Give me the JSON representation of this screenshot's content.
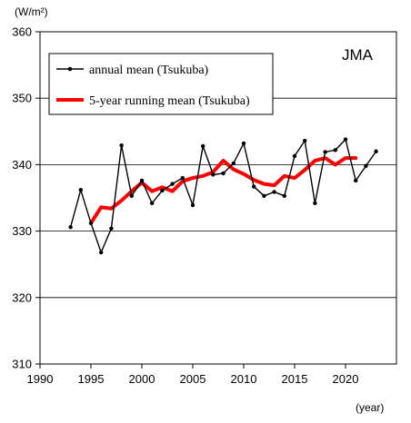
{
  "chart_data": {
    "type": "line",
    "ylabel": "(W/m²)",
    "xlabel": "(year)",
    "annotation": "JMA",
    "xlim": [
      1990,
      2025
    ],
    "ylim": [
      310,
      360
    ],
    "x_ticks": [
      1990,
      1995,
      2000,
      2005,
      2010,
      2015,
      2020
    ],
    "y_ticks": [
      310,
      320,
      330,
      340,
      350,
      360
    ],
    "grid": true,
    "legend_position": "top-left",
    "series": [
      {
        "name": "annual mean (Tsukuba)",
        "color": "#000000",
        "marker": "dot",
        "x": [
          1993,
          1994,
          1995,
          1996,
          1997,
          1998,
          1999,
          2000,
          2001,
          2002,
          2003,
          2004,
          2005,
          2006,
          2007,
          2008,
          2009,
          2010,
          2011,
          2012,
          2013,
          2014,
          2015,
          2016,
          2017,
          2018,
          2019,
          2020,
          2021,
          2022,
          2023
        ],
        "y": [
          330.6,
          336.2,
          331.2,
          326.8,
          330.4,
          342.9,
          335.3,
          337.6,
          334.2,
          336.1,
          337.1,
          338.0,
          333.9,
          342.8,
          338.5,
          338.7,
          340.2,
          343.2,
          336.7,
          335.3,
          335.9,
          335.3,
          341.3,
          343.6,
          334.2,
          341.9,
          342.2,
          343.8,
          337.6,
          339.8,
          342.0
        ]
      },
      {
        "name": "5-year running mean (Tsukuba)",
        "color": "#ff0000",
        "x": [
          1995,
          1996,
          1997,
          1998,
          1999,
          2000,
          2001,
          2002,
          2003,
          2004,
          2005,
          2006,
          2007,
          2008,
          2009,
          2010,
          2011,
          2012,
          2013,
          2014,
          2015,
          2016,
          2017,
          2018,
          2019,
          2020,
          2021
        ],
        "y": [
          331.2,
          333.6,
          333.4,
          334.6,
          336.0,
          337.3,
          336.0,
          336.6,
          336.0,
          337.5,
          338.0,
          338.3,
          338.9,
          340.6,
          339.3,
          338.6,
          337.7,
          337.1,
          336.9,
          338.3,
          338.0,
          339.2,
          340.6,
          341.0,
          340.0,
          341.0,
          341.0
        ]
      }
    ]
  }
}
